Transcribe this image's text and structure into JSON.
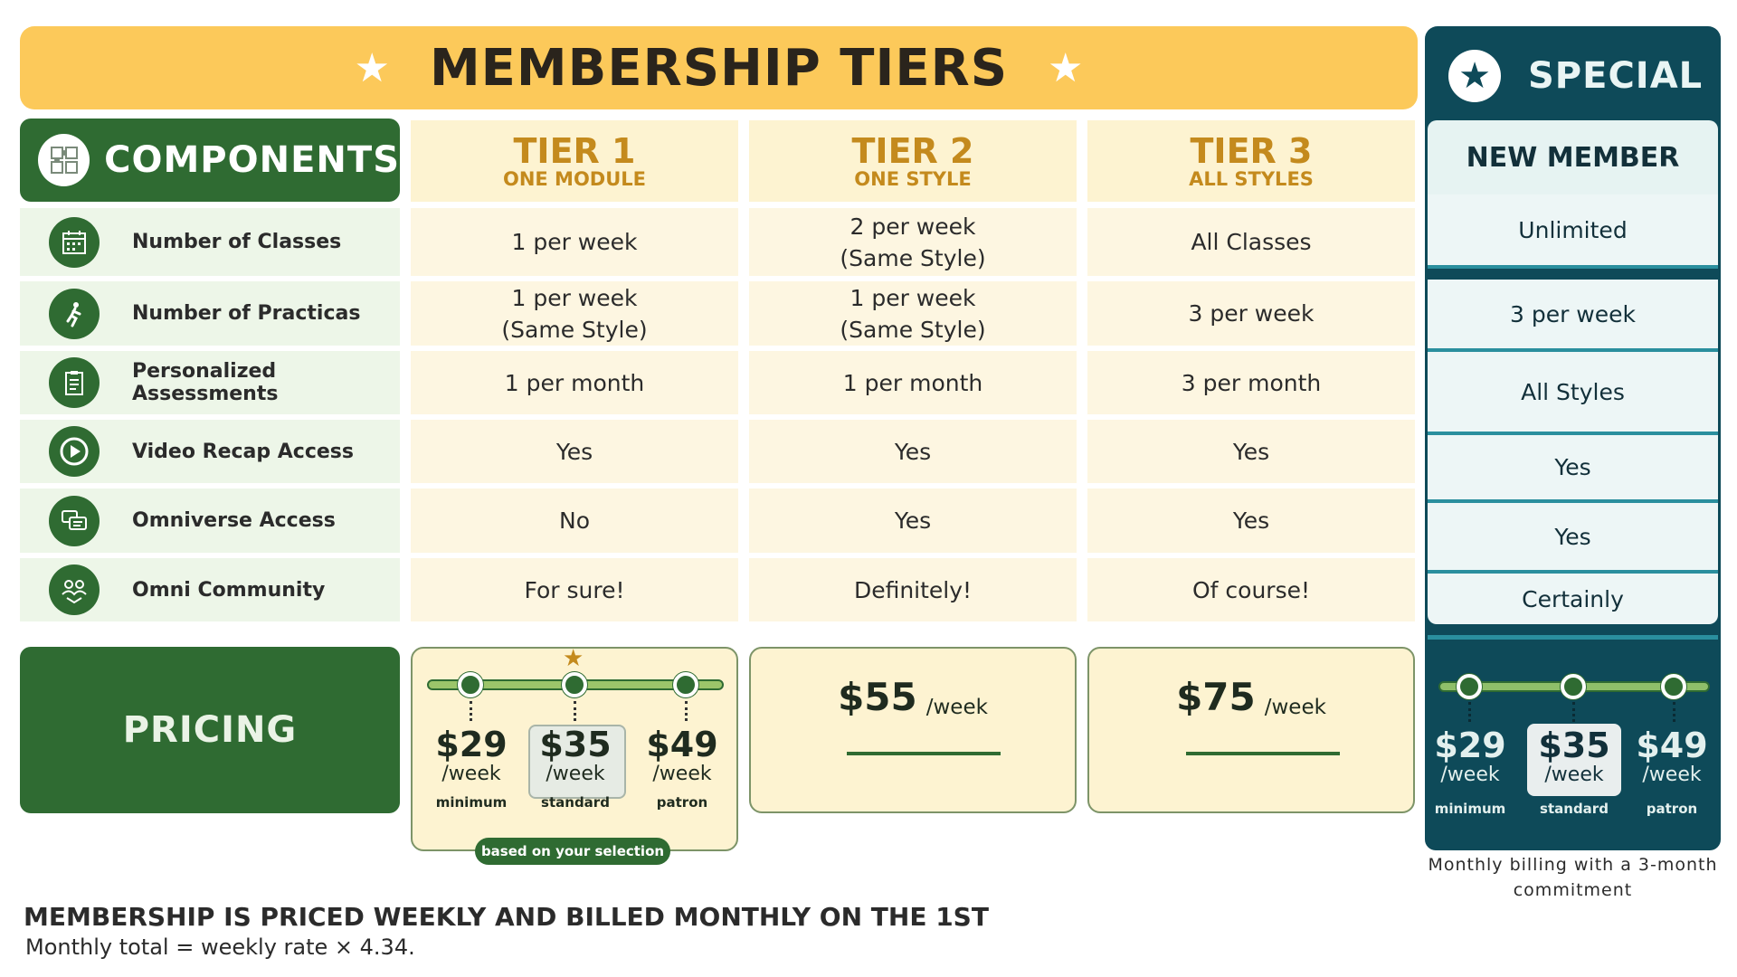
{
  "banner": {
    "title": "MEMBERSHIP TIERS",
    "star": "★"
  },
  "special": {
    "badge_icon": "star-icon",
    "label": "SPECIAL",
    "column_title": "NEW MEMBER",
    "note": "Monthly billing with a 3-month commitment"
  },
  "components": {
    "title": "COMPONENTS",
    "icon": "puzzle-icon"
  },
  "tiers": [
    {
      "title": "TIER 1",
      "subtitle": "ONE MODULE"
    },
    {
      "title": "TIER 2",
      "subtitle": "ONE STYLE"
    },
    {
      "title": "TIER 3",
      "subtitle": "ALL STYLES"
    }
  ],
  "rows": [
    {
      "label": "Number of Classes",
      "icon": "calendar-icon",
      "values": [
        "1 per week",
        "2 per week\n(Same Style)",
        "All Classes"
      ],
      "special": "Unlimited"
    },
    {
      "label": "Number of Practicas",
      "icon": "dancer-icon",
      "values": [
        "1 per week\n(Same Style)",
        "1 per week\n(Same Style)",
        "3 per week"
      ],
      "special": "3 per week"
    },
    {
      "label": "Personalized Assessments",
      "icon": "clipboard-icon",
      "values": [
        "1 per month",
        "1 per month",
        "3 per month"
      ],
      "special": "All Styles"
    },
    {
      "label": "Video Recap Access",
      "icon": "play-icon",
      "values": [
        "Yes",
        "Yes",
        "Yes"
      ],
      "special": "Yes"
    },
    {
      "label": "Omniverse Access",
      "icon": "chat-icon",
      "values": [
        "No",
        "Yes",
        "Yes"
      ],
      "special": "Yes"
    },
    {
      "label": "Omni Community",
      "icon": "community-icon",
      "values": [
        "For sure!",
        "Definitely!",
        "Of course!"
      ],
      "special": "Certainly"
    }
  ],
  "pricing": {
    "label": "PRICING",
    "tier1": {
      "options": [
        {
          "amount": "$29",
          "per": "/week",
          "name": "minimum"
        },
        {
          "amount": "$35",
          "per": "/week",
          "name": "standard"
        },
        {
          "amount": "$49",
          "per": "/week",
          "name": "patron"
        }
      ],
      "note": "based on your selection"
    },
    "tier2": {
      "amount": "$55",
      "per": "/week"
    },
    "tier3": {
      "amount": "$75",
      "per": "/week"
    },
    "special": {
      "options": [
        {
          "amount": "$29",
          "per": "/week",
          "name": "minimum"
        },
        {
          "amount": "$35",
          "per": "/week",
          "name": "standard"
        },
        {
          "amount": "$49",
          "per": "/week",
          "name": "patron"
        }
      ]
    }
  },
  "footer": {
    "title": "MEMBERSHIP IS PRICED WEEKLY AND BILLED MONTHLY ON THE 1ST",
    "subtitle": "Monthly total = weekly rate × 4.34."
  },
  "colors": {
    "banner": "#fcc95a",
    "green": "#2f6b32",
    "teal": "#0e4a59",
    "tier_text": "#c48a1d"
  }
}
